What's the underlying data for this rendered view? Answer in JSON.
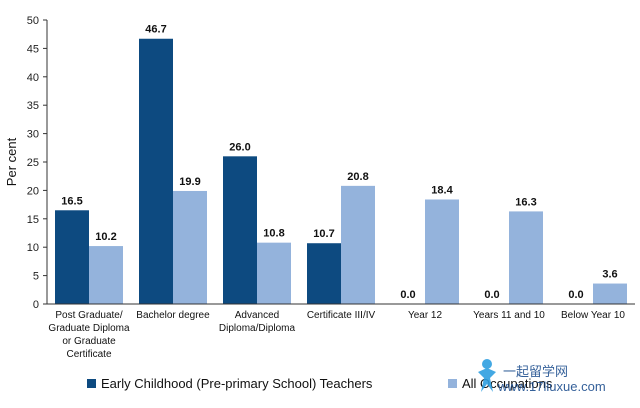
{
  "chart_data": {
    "type": "bar",
    "ylabel": "Per cent",
    "ylim": [
      0,
      50
    ],
    "yticks": [
      0,
      5,
      10,
      15,
      20,
      25,
      30,
      35,
      40,
      45,
      50
    ],
    "grid": false,
    "legend_position": "bottom",
    "categories": [
      [
        "Post Graduate/",
        "Graduate Diploma",
        "or Graduate",
        "Certificate"
      ],
      [
        "Bachelor degree"
      ],
      [
        "Advanced",
        "Diploma/Diploma"
      ],
      [
        "Certificate III/IV"
      ],
      [
        "Year 12"
      ],
      [
        "Years 11 and 10"
      ],
      [
        "Below Year 10"
      ]
    ],
    "series": [
      {
        "name": "Early Childhood (Pre-primary School) Teachers",
        "color": "#0d4a80",
        "values": [
          16.5,
          46.7,
          26.0,
          10.7,
          0.0,
          0.0,
          0.0
        ]
      },
      {
        "name": "All Occupations",
        "color": "#94b3dc",
        "values": [
          10.2,
          19.9,
          10.8,
          20.8,
          18.4,
          16.3,
          3.6
        ]
      }
    ]
  },
  "watermark": {
    "text": "一起留学网",
    "url_text": "www.17liuxue.com",
    "logo_icon": "star-figure-icon"
  }
}
